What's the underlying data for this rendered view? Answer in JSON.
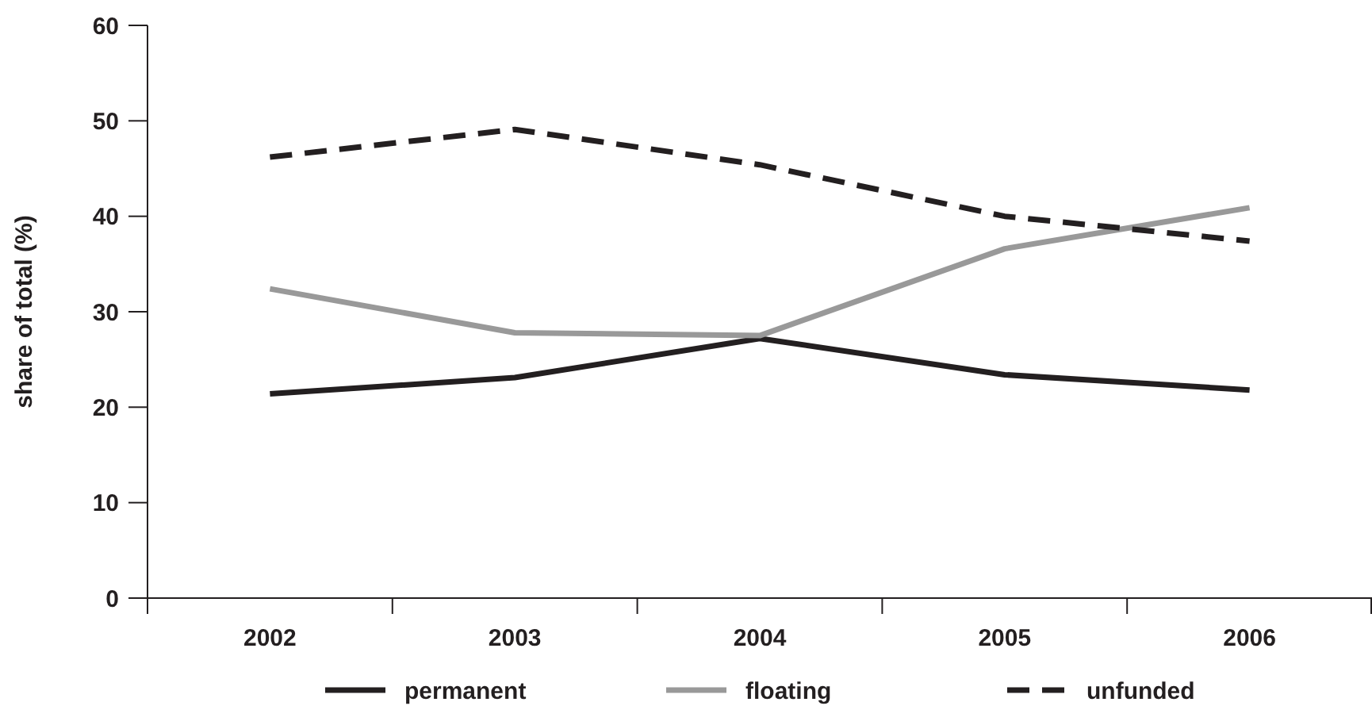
{
  "chart_data": {
    "type": "line",
    "ylabel": "share of total (%)",
    "categories": [
      "2002",
      "2003",
      "2004",
      "2005",
      "2006"
    ],
    "ylim": [
      0,
      60
    ],
    "yticks": [
      0,
      10,
      20,
      30,
      40,
      50,
      60
    ],
    "grid": false,
    "legend": "bottom",
    "series": [
      {
        "name": "permanent",
        "color": "#231f20",
        "values": [
          21.4,
          23.1,
          27.2,
          23.4,
          21.8
        ],
        "line_style": "solid"
      },
      {
        "name": "floating",
        "color": "#999999",
        "values": [
          32.4,
          27.8,
          27.5,
          36.6,
          40.9
        ],
        "line_style": "solid"
      },
      {
        "name": "unfunded",
        "color": "#231f20",
        "values": [
          46.2,
          49.1,
          45.4,
          40,
          37.4
        ],
        "line_style": "dashed"
      }
    ]
  }
}
